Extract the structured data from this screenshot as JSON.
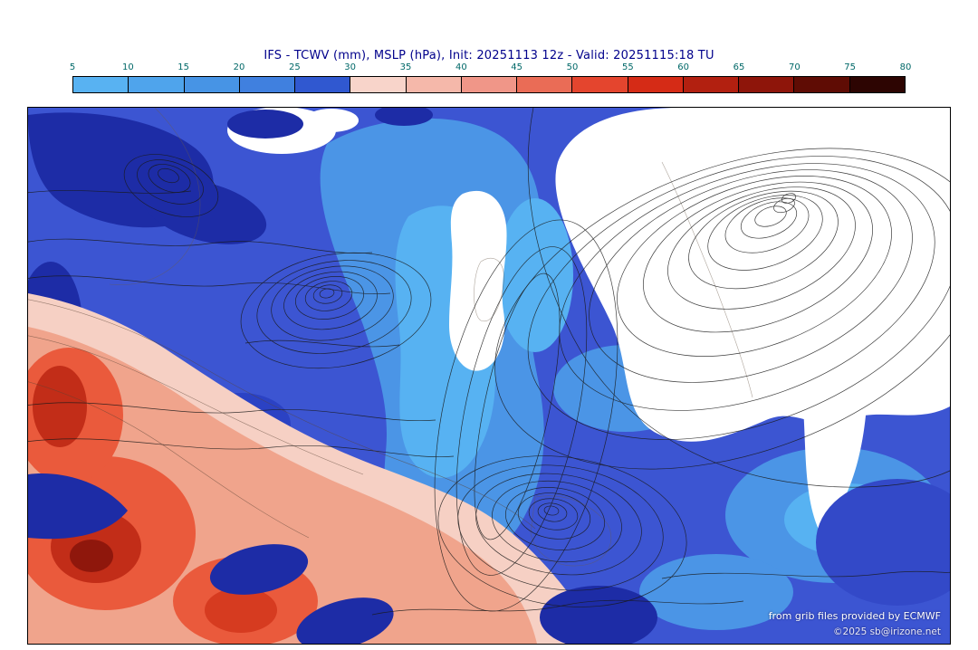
{
  "title": "IFS - TCWV (mm), MSLP (hPa), Init: 20251113 12z - Valid: 20251115:18 TU",
  "title_color": "#00008b",
  "run_info": {
    "model": "IFS",
    "fields": "TCWV (mm), MSLP (hPa)",
    "init": "20251113 12z",
    "valid": "20251115:18 TU"
  },
  "colorbar": {
    "unit": "mm",
    "ticks": [
      "5",
      "10",
      "15",
      "20",
      "25",
      "30",
      "35",
      "40",
      "45",
      "50",
      "55",
      "60",
      "65",
      "70",
      "75",
      "80"
    ],
    "segment_colors": [
      "#58b2f2",
      "#4fa4ec",
      "#4794e5",
      "#4080df",
      "#3058d0",
      "#f8d4ca",
      "#f5b8aa",
      "#f09688",
      "#ea6c56",
      "#e4452e",
      "#d52b16",
      "#b22010",
      "#8e150a",
      "#5f0c04",
      "#2d0502"
    ],
    "tick_color": "#006868"
  },
  "map": {
    "attribution_line1": "from grib files provided by ECMWF",
    "attribution_line2": "©2025 sb@irizone.net",
    "palette": {
      "base_blue": "#3c55d2",
      "light_blue": "#4b95e6",
      "lightest_blue": "#57b2f2",
      "dark_navy": "#1d2ca6",
      "dry_white": "#ffffff",
      "pale_pink": "#f6d0c4",
      "salmon": "#f0a48c",
      "red": "#ea5a3c",
      "dark_red": "#c22d18",
      "contour": "#1a1a1a"
    }
  }
}
